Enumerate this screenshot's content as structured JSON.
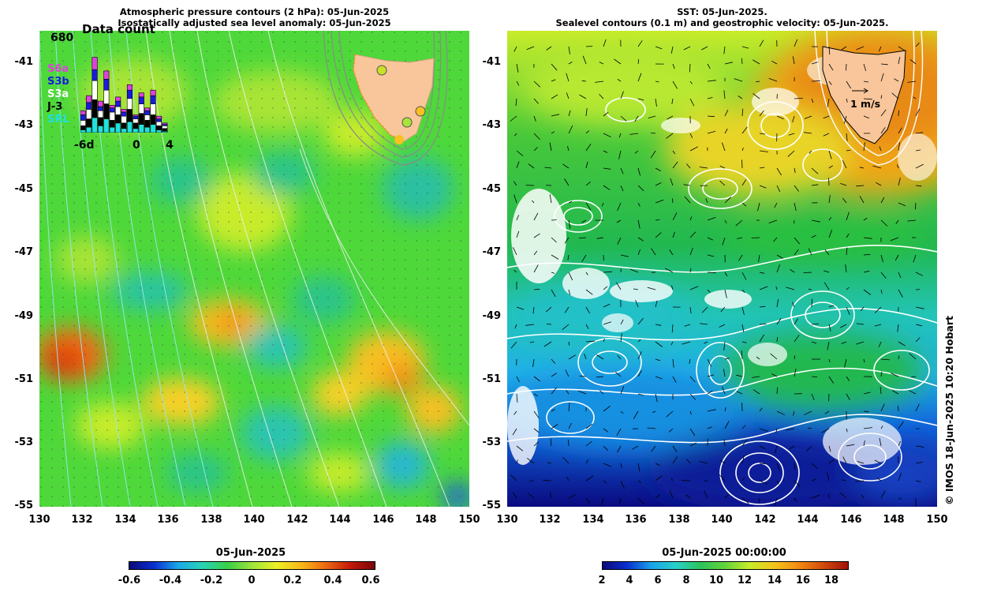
{
  "left_panel": {
    "title_line1": "Atmospheric pressure contours (2 hPa): 05-Jun-2025",
    "title_line2": "Isostatically adjusted sea level anomaly: 05-Jun-2025",
    "colorbar": {
      "label": "05-Jun-2025",
      "ticks": [
        "-0.6",
        "-0.4",
        "-0.2",
        "0",
        "0.2",
        "0.4",
        "0.6"
      ],
      "colors": [
        "#0a0a78",
        "#0a2fd0",
        "#1aa8e8",
        "#28d4b4",
        "#38d048",
        "#9ee43a",
        "#eef026",
        "#f8b818",
        "#ee6a12",
        "#c41a0a",
        "#7a0606"
      ]
    }
  },
  "right_panel": {
    "title_line1": "SST: 05-Jun-2025.",
    "title_line2": "Sealevel contours (0.1 m) and geostrophic velocity: 05-Jun-2025.",
    "velocity_scale_label": "1 m/s",
    "colorbar": {
      "label": "05-Jun-2025 00:00:00",
      "ticks": [
        "2",
        "4",
        "6",
        "8",
        "10",
        "12",
        "14",
        "16",
        "18"
      ],
      "colors": [
        "#0a0a7a",
        "#0a30d0",
        "#1aa4ea",
        "#28d0c8",
        "#2cc45a",
        "#64d43a",
        "#c8ec2a",
        "#f4c41c",
        "#f08a12",
        "#d24a0a",
        "#a01008"
      ]
    }
  },
  "axes": {
    "lat_ticks": [
      "-41",
      "-43",
      "-45",
      "-47",
      "-49",
      "-51",
      "-53",
      "-55"
    ],
    "lon_ticks": [
      "130",
      "132",
      "134",
      "136",
      "138",
      "140",
      "142",
      "144",
      "146",
      "148",
      "150"
    ]
  },
  "inset": {
    "title": "Data count",
    "max_count": "680",
    "legend": [
      {
        "label": "S6a",
        "color": "#e040e0"
      },
      {
        "label": "S3b",
        "color": "#1a1ae0"
      },
      {
        "label": "S3a",
        "color": "#ffffff"
      },
      {
        "label": "J-3",
        "color": "#000000"
      },
      {
        "label": "SRL",
        "color": "#20e0e0"
      }
    ],
    "x_ticks": [
      "-6d",
      "0",
      "4"
    ],
    "bars": [
      [
        30,
        40,
        40,
        30,
        20
      ],
      [
        50,
        50,
        70,
        60,
        40
      ],
      [
        90,
        80,
        140,
        130,
        110
      ],
      [
        40,
        30,
        50,
        60,
        50
      ],
      [
        60,
        80,
        100,
        110,
        100
      ],
      [
        20,
        30,
        60,
        50,
        40
      ],
      [
        30,
        40,
        60,
        60,
        70
      ],
      [
        20,
        30,
        50,
        40,
        30
      ],
      [
        40,
        60,
        80,
        90,
        80
      ],
      [
        10,
        20,
        30,
        40,
        30
      ],
      [
        30,
        50,
        70,
        80,
        60
      ],
      [
        20,
        30,
        40,
        50,
        40
      ],
      [
        40,
        60,
        80,
        70,
        60
      ],
      [
        20,
        20,
        30,
        30,
        20
      ],
      [
        10,
        10,
        20,
        20,
        10
      ]
    ]
  },
  "credit": "© IMOS 18-Jun-2025 10:20 Hobart"
}
